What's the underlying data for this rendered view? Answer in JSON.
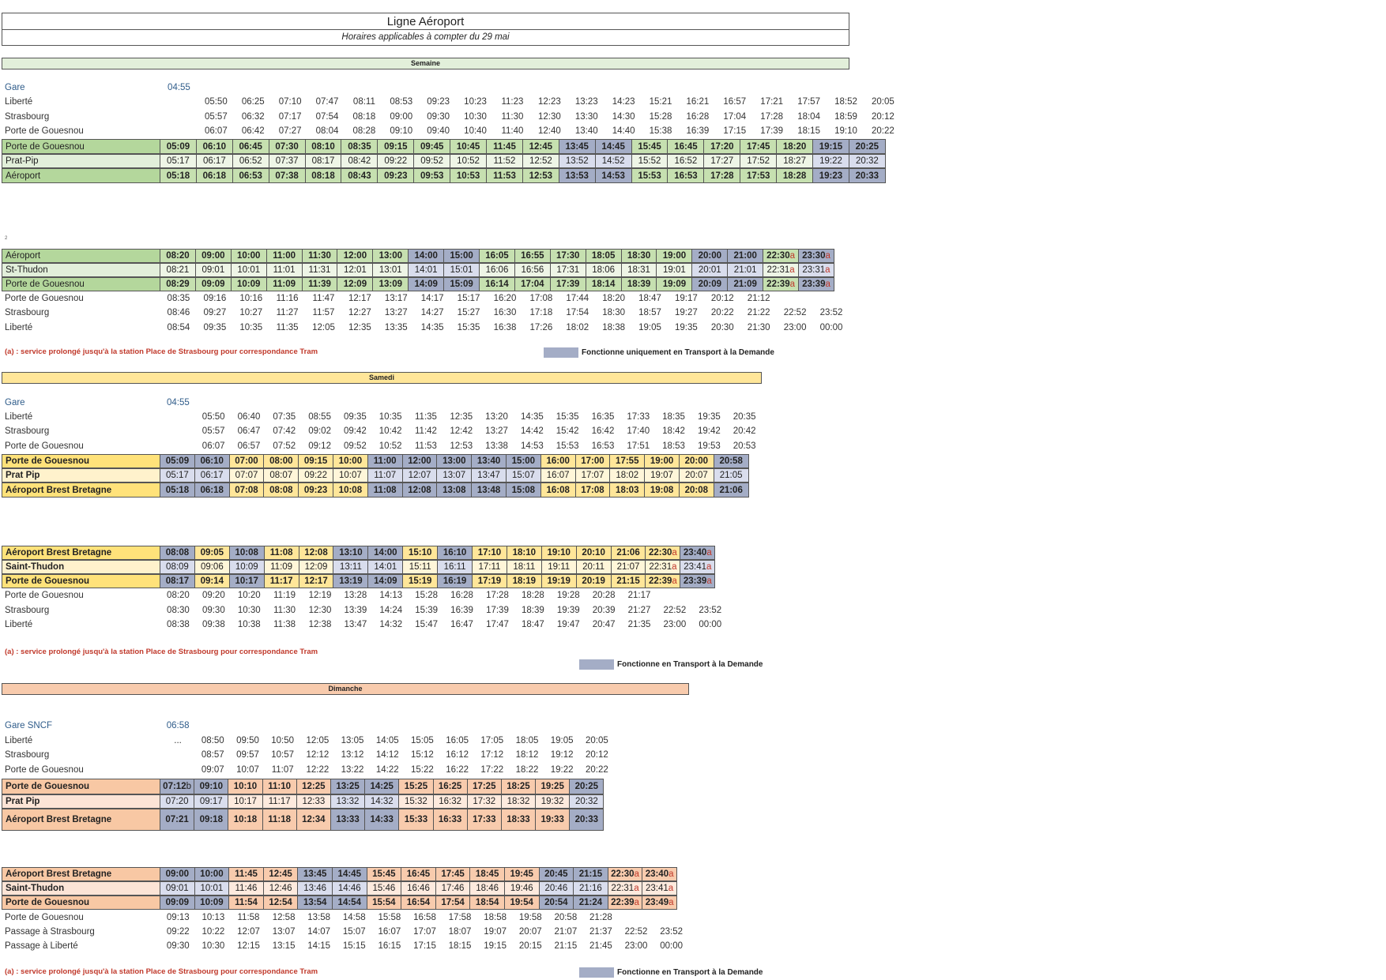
{
  "header": {
    "title": "Ligne Aéroport",
    "subtitle": "Horaires applicables à compter du 29 mai"
  },
  "colors": {
    "tad_strong": "#a4adc6",
    "tad_light": "#d9dded",
    "semaine": "#e2efda",
    "samedi": "#ffe699",
    "dimanche": "#f8cbad",
    "note_red": "#c0392b",
    "gare_blue": "#2f5c8a"
  },
  "sections": {
    "semaine": "Semaine",
    "samedi": "Samedi",
    "dimanche": "Dimanche"
  },
  "page_mark": "2",
  "notes": {
    "a_semaine": "(a) : service prolongé jusqu'à la station Place de Strasbourg pour correspondance Tram",
    "a_samedi": "(a) : service prolongé jusqu'à la station Place de Strasbourg pour correspondance Tram",
    "a_dimanche": "(a) : service prolongé jusqu'à la station Place de Strasbourg pour correspondance Tram",
    "legend_semaine": "Fonctionne uniquement en Transport à la Demande",
    "legend_samedi": "Fonctionne en Transport à la Demande",
    "legend_dimanche": "Fonctionne en Transport à la Demande"
  },
  "blocks": [
    {
      "id": "semaine-aller",
      "theme": "semaine",
      "tad_columns": [
        11,
        12,
        18,
        19
      ],
      "rows": [
        {
          "kind": "gare",
          "label": "Gare",
          "times": [
            "04:55"
          ]
        },
        {
          "kind": "plain",
          "label": "Liberté",
          "times": [
            "",
            "05:50",
            "06:25",
            "07:10",
            "07:47",
            "08:11",
            "08:53",
            "09:23",
            "10:23",
            "11:23",
            "12:23",
            "13:23",
            "14:23",
            "15:21",
            "16:21",
            "16:57",
            "17:21",
            "17:57",
            "18:52",
            "20:05"
          ]
        },
        {
          "kind": "plain",
          "label": "Strasbourg",
          "times": [
            "",
            "05:57",
            "06:32",
            "07:17",
            "07:54",
            "08:18",
            "09:00",
            "09:30",
            "10:30",
            "11:30",
            "12:30",
            "13:30",
            "14:30",
            "15:28",
            "16:28",
            "17:04",
            "17:28",
            "18:04",
            "18:59",
            "20:12"
          ]
        },
        {
          "kind": "plain",
          "label": "Porte de Gouesnou",
          "times": [
            "",
            "06:07",
            "06:42",
            "07:27",
            "08:04",
            "08:28",
            "09:10",
            "09:40",
            "10:40",
            "11:40",
            "12:40",
            "13:40",
            "14:40",
            "15:38",
            "16:39",
            "17:15",
            "17:39",
            "18:15",
            "19:10",
            "20:22"
          ]
        },
        {
          "kind": "strong",
          "label": "Porte de Gouesnou",
          "times": [
            "05:09",
            "06:10",
            "06:45",
            "07:30",
            "08:10",
            "08:35",
            "09:15",
            "09:45",
            "10:45",
            "11:45",
            "12:45",
            "13:45",
            "14:45",
            "15:45",
            "16:45",
            "17:20",
            "17:45",
            "18:20",
            "19:15",
            "20:25"
          ]
        },
        {
          "kind": "light",
          "label": "Prat-Pip",
          "times": [
            "05:17",
            "06:17",
            "06:52",
            "07:37",
            "08:17",
            "08:42",
            "09:22",
            "09:52",
            "10:52",
            "11:52",
            "12:52",
            "13:52",
            "14:52",
            "15:52",
            "16:52",
            "17:27",
            "17:52",
            "18:27",
            "19:22",
            "20:32"
          ]
        },
        {
          "kind": "strong",
          "label": "Aéroport",
          "times": [
            "05:18",
            "06:18",
            "06:53",
            "07:38",
            "08:18",
            "08:43",
            "09:23",
            "09:53",
            "10:53",
            "11:53",
            "12:53",
            "13:53",
            "14:53",
            "15:53",
            "16:53",
            "17:28",
            "17:53",
            "18:28",
            "19:23",
            "20:33"
          ]
        }
      ]
    },
    {
      "id": "semaine-retour",
      "theme": "semaine",
      "tad_columns": [
        7,
        8,
        15,
        16,
        18
      ],
      "rows": [
        {
          "kind": "strong",
          "label": "Aéroport",
          "times": [
            "08:20",
            "09:00",
            "10:00",
            "11:00",
            "11:30",
            "12:00",
            "13:00",
            "14:00",
            "15:00",
            "16:05",
            "16:55",
            "17:30",
            "18:05",
            "18:30",
            "19:00",
            "20:00",
            "21:00",
            "22:30a",
            "23:30a"
          ]
        },
        {
          "kind": "light",
          "label": "St-Thudon",
          "times": [
            "08:21",
            "09:01",
            "10:01",
            "11:01",
            "11:31",
            "12:01",
            "13:01",
            "14:01",
            "15:01",
            "16:06",
            "16:56",
            "17:31",
            "18:06",
            "18:31",
            "19:01",
            "20:01",
            "21:01",
            "22:31a",
            "23:31a"
          ]
        },
        {
          "kind": "strong",
          "label": "Porte de Gouesnou",
          "times": [
            "08:29",
            "09:09",
            "10:09",
            "11:09",
            "11:39",
            "12:09",
            "13:09",
            "14:09",
            "15:09",
            "16:14",
            "17:04",
            "17:39",
            "18:14",
            "18:39",
            "19:09",
            "20:09",
            "21:09",
            "22:39a",
            "23:39a"
          ]
        },
        {
          "kind": "plain",
          "label": "Porte de Gouesnou",
          "times": [
            "08:35",
            "09:16",
            "10:16",
            "11:16",
            "11:47",
            "12:17",
            "13:17",
            "14:17",
            "15:17",
            "16:20",
            "17:08",
            "17:44",
            "18:20",
            "18:47",
            "19:17",
            "20:12",
            "21:12"
          ]
        },
        {
          "kind": "plain",
          "label": "Strasbourg",
          "times": [
            "08:46",
            "09:27",
            "10:27",
            "11:27",
            "11:57",
            "12:27",
            "13:27",
            "14:27",
            "15:27",
            "16:30",
            "17:18",
            "17:54",
            "18:30",
            "18:57",
            "19:27",
            "20:22",
            "21:22",
            "22:52",
            "23:52"
          ]
        },
        {
          "kind": "plain",
          "label": "Liberté",
          "times": [
            "08:54",
            "09:35",
            "10:35",
            "11:35",
            "12:05",
            "12:35",
            "13:35",
            "14:35",
            "15:35",
            "16:38",
            "17:26",
            "18:02",
            "18:38",
            "19:05",
            "19:35",
            "20:30",
            "21:30",
            "23:00",
            "00:00"
          ]
        }
      ]
    },
    {
      "id": "samedi-aller",
      "theme": "samedi",
      "tad_columns": [
        0,
        1,
        6,
        7,
        8,
        9,
        10,
        16
      ],
      "rows": [
        {
          "kind": "gare",
          "label": "Gare",
          "times": [
            "04:55"
          ]
        },
        {
          "kind": "plain",
          "label": "Liberté",
          "times": [
            "",
            "05:50",
            "06:40",
            "07:35",
            "08:55",
            "09:35",
            "10:35",
            "11:35",
            "12:35",
            "13:20",
            "14:35",
            "15:35",
            "16:35",
            "17:33",
            "18:35",
            "19:35",
            "20:35"
          ]
        },
        {
          "kind": "plain",
          "label": "Strasbourg",
          "times": [
            "",
            "05:57",
            "06:47",
            "07:42",
            "09:02",
            "09:42",
            "10:42",
            "11:42",
            "12:42",
            "13:27",
            "14:42",
            "15:42",
            "16:42",
            "17:40",
            "18:42",
            "19:42",
            "20:42"
          ]
        },
        {
          "kind": "plain",
          "label": "Porte de Gouesnou",
          "times": [
            "",
            "06:07",
            "06:57",
            "07:52",
            "09:12",
            "09:52",
            "10:52",
            "11:53",
            "12:53",
            "13:38",
            "14:53",
            "15:53",
            "16:53",
            "17:51",
            "18:53",
            "19:53",
            "20:53"
          ]
        },
        {
          "kind": "strong",
          "label": "Porte de Gouesnou",
          "times": [
            "05:09",
            "06:10",
            "07:00",
            "08:00",
            "09:15",
            "10:00",
            "11:00",
            "12:00",
            "13:00",
            "13:40",
            "15:00",
            "16:00",
            "17:00",
            "17:55",
            "19:00",
            "20:00",
            "20:58"
          ]
        },
        {
          "kind": "light",
          "label": "Prat Pip",
          "times": [
            "05:17",
            "06:17",
            "07:07",
            "08:07",
            "09:22",
            "10:07",
            "11:07",
            "12:07",
            "13:07",
            "13:47",
            "15:07",
            "16:07",
            "17:07",
            "18:02",
            "19:07",
            "20:07",
            "21:05"
          ]
        },
        {
          "kind": "strong",
          "label": "Aéroport Brest Bretagne",
          "times": [
            "05:18",
            "06:18",
            "07:08",
            "08:08",
            "09:23",
            "10:08",
            "11:08",
            "12:08",
            "13:08",
            "13:48",
            "15:08",
            "16:08",
            "17:08",
            "18:03",
            "19:08",
            "20:08",
            "21:06"
          ]
        }
      ]
    },
    {
      "id": "samedi-retour",
      "theme": "samedi",
      "tad_columns": [
        0,
        2,
        5,
        6,
        8,
        15
      ],
      "rows": [
        {
          "kind": "strong",
          "label": "Aéroport Brest Bretagne",
          "times": [
            "08:08",
            "09:05",
            "10:08",
            "11:08",
            "12:08",
            "13:10",
            "14:00",
            "15:10",
            "16:10",
            "17:10",
            "18:10",
            "19:10",
            "20:10",
            "21:06",
            "22:30a",
            "23:40a"
          ]
        },
        {
          "kind": "light",
          "label": "Saint-Thudon",
          "times": [
            "08:09",
            "09:06",
            "10:09",
            "11:09",
            "12:09",
            "13:11",
            "14:01",
            "15:11",
            "16:11",
            "17:11",
            "18:11",
            "19:11",
            "20:11",
            "21:07",
            "22:31a",
            "23:41a"
          ]
        },
        {
          "kind": "strong",
          "label": "Porte de Gouesnou",
          "times": [
            "08:17",
            "09:14",
            "10:17",
            "11:17",
            "12:17",
            "13:19",
            "14:09",
            "15:19",
            "16:19",
            "17:19",
            "18:19",
            "19:19",
            "20:19",
            "21:15",
            "22:39a",
            "23:39a"
          ]
        },
        {
          "kind": "plain",
          "label": "Porte de Gouesnou",
          "times": [
            "08:20",
            "09:20",
            "10:20",
            "11:19",
            "12:19",
            "13:28",
            "14:13",
            "15:28",
            "16:28",
            "17:28",
            "18:28",
            "19:28",
            "20:28",
            "21:17"
          ]
        },
        {
          "kind": "plain",
          "label": "Strasbourg",
          "times": [
            "08:30",
            "09:30",
            "10:30",
            "11:30",
            "12:30",
            "13:39",
            "14:24",
            "15:39",
            "16:39",
            "17:39",
            "18:39",
            "19:39",
            "20:39",
            "21:27",
            "22:52",
            "23:52"
          ]
        },
        {
          "kind": "plain",
          "label": "Liberté",
          "times": [
            "08:38",
            "09:38",
            "10:38",
            "11:38",
            "12:38",
            "13:47",
            "14:32",
            "15:47",
            "16:47",
            "17:47",
            "18:47",
            "19:47",
            "20:47",
            "21:35",
            "23:00",
            "00:00"
          ]
        }
      ]
    },
    {
      "id": "dimanche-aller",
      "theme": "dimanche",
      "tad_columns": [
        0,
        1,
        5,
        6,
        12
      ],
      "rows": [
        {
          "kind": "gare",
          "label": "Gare SNCF",
          "times": [
            "06:58"
          ]
        },
        {
          "kind": "plain",
          "label": "Liberté",
          "times": [
            "...",
            "08:50",
            "09:50",
            "10:50",
            "12:05",
            "13:05",
            "14:05",
            "15:05",
            "16:05",
            "17:05",
            "18:05",
            "19:05",
            "20:05"
          ]
        },
        {
          "kind": "plain",
          "label": "Strasbourg",
          "times": [
            "",
            "08:57",
            "09:57",
            "10:57",
            "12:12",
            "13:12",
            "14:12",
            "15:12",
            "16:12",
            "17:12",
            "18:12",
            "19:12",
            "20:12"
          ]
        },
        {
          "kind": "plain",
          "label": "Porte de Gouesnou",
          "times": [
            "",
            "09:07",
            "10:07",
            "11:07",
            "12:22",
            "13:22",
            "14:22",
            "15:22",
            "16:22",
            "17:22",
            "18:22",
            "19:22",
            "20:22"
          ]
        },
        {
          "kind": "strong",
          "label": "Porte de Gouesnou",
          "times": [
            "07:12b",
            "09:10",
            "10:10",
            "11:10",
            "12:25",
            "13:25",
            "14:25",
            "15:25",
            "16:25",
            "17:25",
            "18:25",
            "19:25",
            "20:25"
          ]
        },
        {
          "kind": "light",
          "label": "Prat Pip",
          "times": [
            "07:20",
            "09:17",
            "10:17",
            "11:17",
            "12:33",
            "13:32",
            "14:32",
            "15:32",
            "16:32",
            "17:32",
            "18:32",
            "19:32",
            "20:32"
          ]
        },
        {
          "kind": "strong",
          "label": "Aéroport Brest Bretagne",
          "times": [
            "07:21",
            "09:18",
            "10:18",
            "11:18",
            "12:34",
            "13:33",
            "14:33",
            "15:33",
            "16:33",
            "17:33",
            "18:33",
            "19:33",
            "20:33"
          ]
        }
      ]
    },
    {
      "id": "dimanche-retour",
      "theme": "dimanche",
      "tad_columns": [
        0,
        1,
        4,
        5,
        11,
        12
      ],
      "rows": [
        {
          "kind": "strong",
          "label": "Aéroport Brest Bretagne",
          "times": [
            "09:00",
            "10:00",
            "11:45",
            "12:45",
            "13:45",
            "14:45",
            "15:45",
            "16:45",
            "17:45",
            "18:45",
            "19:45",
            "20:45",
            "21:15",
            "22:30a",
            "23:40a"
          ]
        },
        {
          "kind": "light",
          "label": "Saint-Thudon",
          "times": [
            "09:01",
            "10:01",
            "11:46",
            "12:46",
            "13:46",
            "14:46",
            "15:46",
            "16:46",
            "17:46",
            "18:46",
            "19:46",
            "20:46",
            "21:16",
            "22:31a",
            "23:41a"
          ]
        },
        {
          "kind": "strong",
          "label": "Porte de Gouesnou",
          "times": [
            "09:09",
            "10:09",
            "11:54",
            "12:54",
            "13:54",
            "14:54",
            "15:54",
            "16:54",
            "17:54",
            "18:54",
            "19:54",
            "20:54",
            "21:24",
            "22:39a",
            "23:49a"
          ]
        },
        {
          "kind": "plain",
          "label": "Porte de Gouesnou",
          "times": [
            "09:13",
            "10:13",
            "11:58",
            "12:58",
            "13:58",
            "14:58",
            "15:58",
            "16:58",
            "17:58",
            "18:58",
            "19:58",
            "20:58",
            "21:28"
          ]
        },
        {
          "kind": "plain",
          "label": "Passage à Strasbourg",
          "times": [
            "09:22",
            "10:22",
            "12:07",
            "13:07",
            "14:07",
            "15:07",
            "16:07",
            "17:07",
            "18:07",
            "19:07",
            "20:07",
            "21:07",
            "21:37",
            "22:52",
            "23:52"
          ]
        },
        {
          "kind": "plain",
          "label": "Passage à Liberté",
          "times": [
            "09:30",
            "10:30",
            "12:15",
            "13:15",
            "14:15",
            "15:15",
            "16:15",
            "17:15",
            "18:15",
            "19:15",
            "20:15",
            "21:15",
            "21:45",
            "23:00",
            "00:00"
          ]
        }
      ]
    }
  ]
}
